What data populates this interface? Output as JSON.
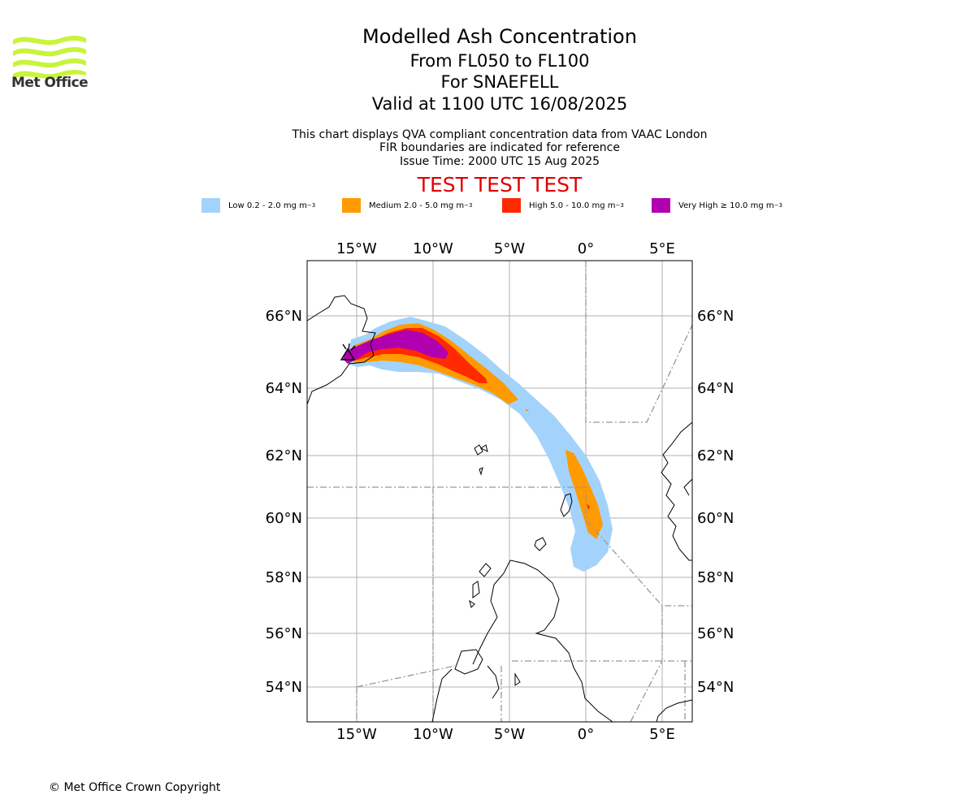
{
  "logo": {
    "text": "Met Office",
    "color": "#c8f43a"
  },
  "header": {
    "title": "Modelled Ash Concentration",
    "levels": "From FL050 to FL100",
    "volcano": "For SNAEFELL",
    "valid": "Valid at 1100 UTC 16/08/2025",
    "desc1": "This chart displays QVA compliant concentration data from VAAC London",
    "desc2": "FIR boundaries are indicated for reference",
    "issue": "Issue Time: 2000 UTC 15 Aug 2025",
    "test": "TEST TEST TEST"
  },
  "legend": [
    {
      "label": "Low 0.2 - 2.0 mg m",
      "color": "#a3d3fb"
    },
    {
      "label": "Medium 2.0 - 5.0 mg m",
      "color": "#ff9a00"
    },
    {
      "label": "High 5.0 - 10.0 mg m",
      "color": "#ff2a00"
    },
    {
      "label": "Very High  ≥  10.0 mg m",
      "color": "#b000b0"
    }
  ],
  "legend_unit_exp": "−3",
  "map": {
    "lon_labels": [
      "15°W",
      "10°W",
      "5°W",
      "0°",
      "5°E"
    ],
    "lat_labels": [
      "66°N",
      "64°N",
      "62°N",
      "60°N",
      "58°N",
      "56°N",
      "54°N"
    ]
  },
  "footer": {
    "copyright": "© Met Office Crown Copyright"
  }
}
